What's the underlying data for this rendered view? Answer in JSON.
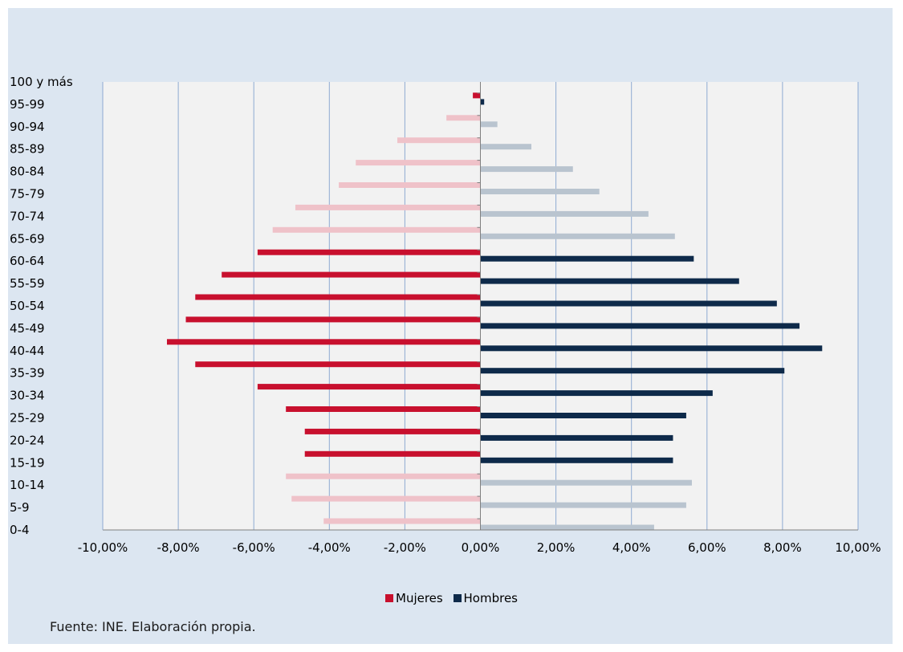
{
  "chart_data": {
    "type": "bar",
    "orientation": "horizontal",
    "title": "",
    "xlabel": "",
    "ylabel": "",
    "xlim": [
      -10,
      10
    ],
    "x_ticks": [
      -10,
      -8,
      -6,
      -4,
      -2,
      0,
      2,
      4,
      6,
      8,
      10
    ],
    "x_tick_labels": [
      "-10,00%",
      "-8,00%",
      "-6,00%",
      "-4,00%",
      "-2,00%",
      "0,00%",
      "2,00%",
      "4,00%",
      "6,00%",
      "8,00%",
      "10,00%"
    ],
    "categories": [
      "0-4",
      "5-9",
      "10-14",
      "15-19",
      "20-24",
      "25-29",
      "30-34",
      "35-39",
      "40-44",
      "45-49",
      "50-54",
      "55-59",
      "60-64",
      "65-69",
      "70-74",
      "75-79",
      "80-84",
      "85-89",
      "90-94",
      "95-99",
      "100 y más"
    ],
    "grid": {
      "vertical": true,
      "horizontal": false
    },
    "legend_position": "bottom",
    "series": [
      {
        "name": "Mujeres",
        "color": "#c8102e",
        "faded_color": "#efc2c9",
        "values": [
          -4.15,
          -5.0,
          -5.15,
          -4.65,
          -4.65,
          -5.15,
          -5.9,
          -7.55,
          -8.3,
          -7.8,
          -7.55,
          -6.85,
          -5.9,
          -5.5,
          -4.9,
          -3.75,
          -3.3,
          -2.2,
          -0.9,
          -0.2,
          0.0
        ]
      },
      {
        "name": "Hombres",
        "color": "#0e2a4a",
        "faded_color": "#b9c4cf",
        "values": [
          4.6,
          5.45,
          5.6,
          5.1,
          5.1,
          5.45,
          6.15,
          8.05,
          9.05,
          8.45,
          7.85,
          6.85,
          5.65,
          5.15,
          4.45,
          3.15,
          2.45,
          1.35,
          0.45,
          0.1,
          0.0
        ]
      }
    ],
    "highlighted_categories": [
      "15-19",
      "20-24",
      "25-29",
      "30-34",
      "35-39",
      "40-44",
      "45-49",
      "50-54",
      "55-59",
      "60-64",
      "95-99"
    ]
  },
  "source_note": "Fuente: INE. Elaboración propia."
}
